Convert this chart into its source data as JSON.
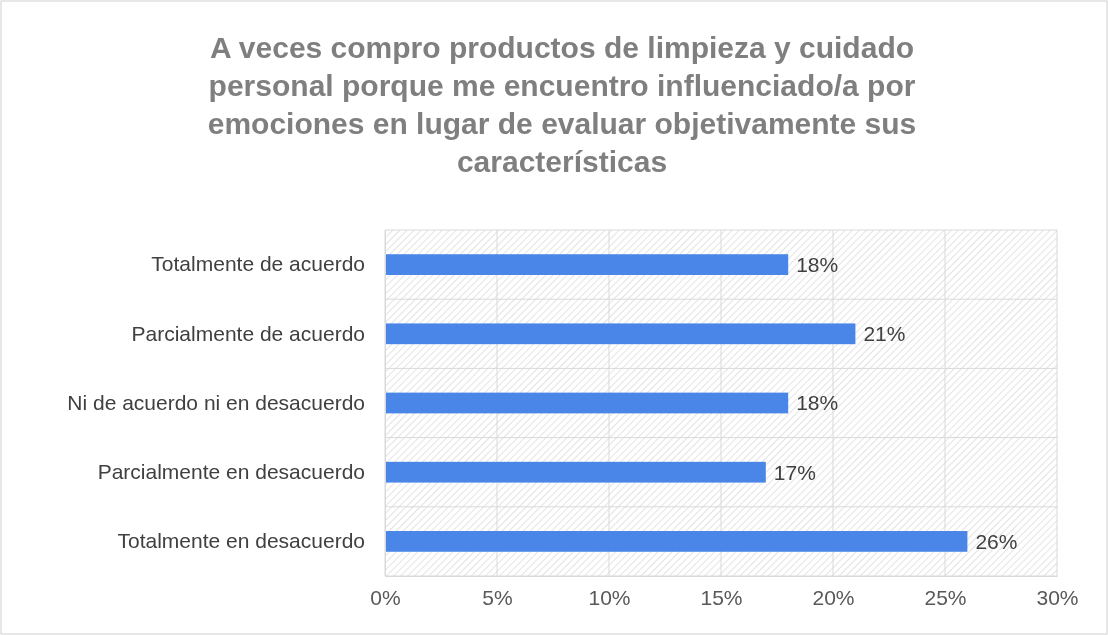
{
  "chart_data": {
    "type": "bar",
    "orientation": "horizontal",
    "title": "A veces compro productos de limpieza y cuidado personal porque me encuentro influenciado/a por emociones en lugar de evaluar objetivamente sus características",
    "categories": [
      "Totalmente de acuerdo",
      "Parcialmente de acuerdo",
      "Ni de acuerdo ni en desacuerdo",
      "Parcialmente en desacuerdo",
      "Totalmente en desacuerdo"
    ],
    "values": [
      18,
      21,
      18,
      17,
      26
    ],
    "value_labels": [
      "18%",
      "21%",
      "18%",
      "17%",
      "26%"
    ],
    "color": "#4a86e8",
    "xlim": [
      0,
      30
    ],
    "xticks": [
      {
        "value": 0,
        "label": "0%"
      },
      {
        "value": 5,
        "label": "5%"
      },
      {
        "value": 10,
        "label": "10%"
      },
      {
        "value": 15,
        "label": "15%"
      },
      {
        "value": 20,
        "label": "20%"
      },
      {
        "value": 25,
        "label": "25%"
      },
      {
        "value": 30,
        "label": "30%"
      }
    ],
    "grid": true
  }
}
